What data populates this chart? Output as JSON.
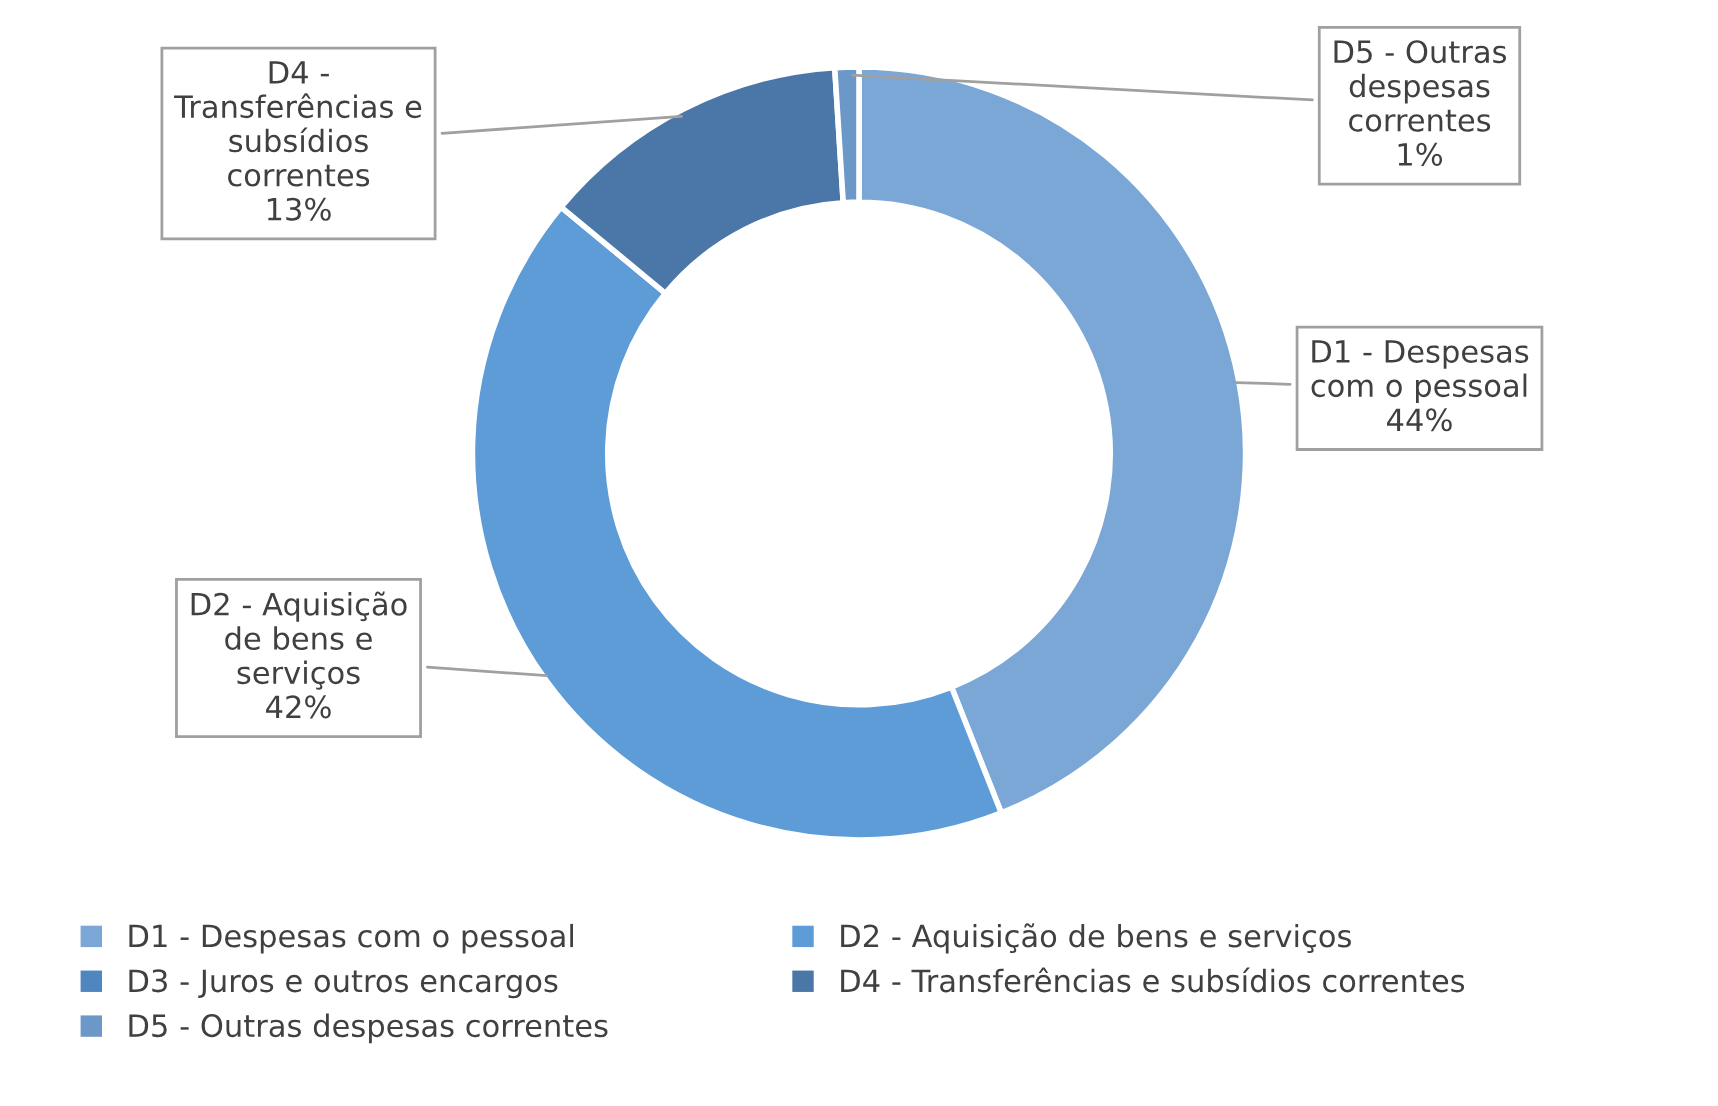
{
  "chart_data": {
    "type": "donut",
    "categories": [
      "D1 - Despesas com o pessoal",
      "D2 - Aquisição de bens e serviços",
      "D3 - Juros e outros encargos",
      "D4 - Transferências e subsídios correntes",
      "D5 - Outras despesas correntes"
    ],
    "values": [
      44,
      42,
      0,
      13,
      1
    ],
    "colors": [
      "#7ba7d6",
      "#5e9cd8",
      "#4f86c0",
      "#4a76a8",
      "#6b98c8"
    ],
    "value_labels": [
      "D1 - Despesas\ncom o pessoal\n44%",
      "D2 - Aquisição\nde bens e\nserviços\n42%",
      null,
      "D4 -\nTransferências e\nsubsídios\ncorrentes\n13%",
      "D5 - Outras\ndespesas\ncorrentes\n1%"
    ],
    "legend": "bottom"
  }
}
